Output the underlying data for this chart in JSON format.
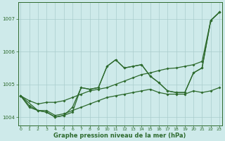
{
  "xlabel": "Graphe pression niveau de la mer (hPa)",
  "bg_color": "#ceeaea",
  "grid_color": "#aacccc",
  "line_color": "#2d6a2d",
  "ylim": [
    1003.75,
    1007.5
  ],
  "xlim": [
    -0.3,
    23.3
  ],
  "yticks": [
    1004,
    1005,
    1006,
    1007
  ],
  "xticks": [
    0,
    1,
    2,
    3,
    4,
    5,
    6,
    7,
    8,
    9,
    10,
    11,
    12,
    13,
    14,
    15,
    16,
    17,
    18,
    19,
    20,
    21,
    22,
    23
  ],
  "line1_x": [
    0,
    1,
    2,
    3,
    4,
    5,
    6,
    7,
    8,
    9,
    10,
    11,
    12,
    13,
    14,
    15,
    16,
    17,
    18,
    19,
    20,
    21,
    22,
    23
  ],
  "line1_y": [
    1004.65,
    1004.35,
    1004.2,
    1004.2,
    1004.05,
    1004.1,
    1004.2,
    1004.3,
    1004.4,
    1004.5,
    1004.6,
    1004.65,
    1004.7,
    1004.75,
    1004.8,
    1004.85,
    1004.75,
    1004.7,
    1004.7,
    1004.7,
    1004.8,
    1004.75,
    1004.8,
    1004.9
  ],
  "line2_x": [
    0,
    1,
    2,
    3,
    4,
    5,
    6,
    7,
    8,
    9,
    10,
    11,
    12,
    13,
    14,
    15,
    16,
    17,
    18,
    19,
    20,
    21,
    22,
    23
  ],
  "line2_y": [
    1004.65,
    1004.3,
    1004.2,
    1004.15,
    1004.0,
    1004.05,
    1004.15,
    1004.9,
    1004.85,
    1004.9,
    1005.55,
    1005.75,
    1005.5,
    1005.55,
    1005.6,
    1005.25,
    1005.05,
    1004.8,
    1004.75,
    1004.75,
    1005.35,
    1005.5,
    1006.95,
    1007.2
  ],
  "line3_x": [
    0,
    2,
    3,
    4,
    5,
    6,
    7,
    8,
    9,
    10,
    11,
    12,
    13,
    14,
    15,
    16,
    17,
    18,
    19,
    20,
    21,
    22,
    23
  ],
  "line3_y": [
    1004.65,
    1004.2,
    1004.15,
    1004.0,
    1004.05,
    1004.3,
    1004.9,
    1004.85,
    1004.9,
    1005.55,
    1005.75,
    1005.5,
    1005.55,
    1005.6,
    1005.25,
    1005.05,
    1004.8,
    1004.75,
    1004.75,
    1005.35,
    1005.5,
    1006.95,
    1007.2
  ],
  "line4_x": [
    0,
    1,
    2,
    3,
    4,
    5,
    6,
    7,
    8,
    9,
    10,
    11,
    12,
    13,
    14,
    15,
    16,
    17,
    18,
    19,
    20,
    21,
    22,
    23
  ],
  "line4_y": [
    1004.65,
    1004.5,
    1004.4,
    1004.45,
    1004.45,
    1004.5,
    1004.6,
    1004.7,
    1004.8,
    1004.85,
    1004.9,
    1005.0,
    1005.1,
    1005.2,
    1005.3,
    1005.35,
    1005.42,
    1005.48,
    1005.5,
    1005.55,
    1005.6,
    1005.7,
    1006.95,
    1007.2
  ]
}
